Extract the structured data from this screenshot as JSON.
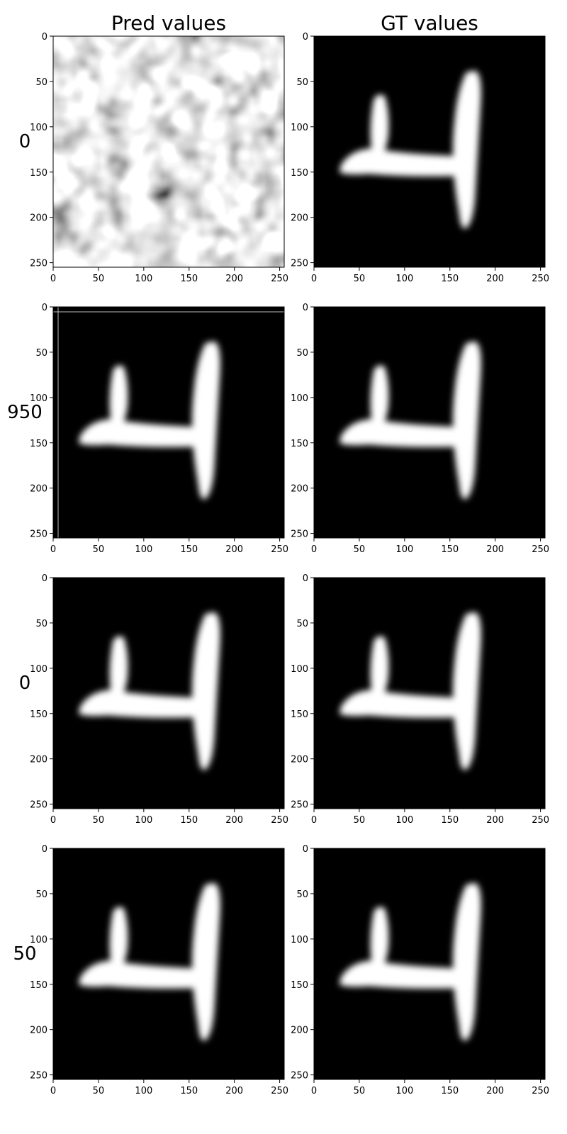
{
  "chart_data": {
    "type": "heatmap",
    "colormap": "gray",
    "column_titles": [
      "Pred values",
      "GT values"
    ],
    "row_labels": [
      "0",
      "950",
      "0",
      "50"
    ],
    "x_ticks": [
      "0",
      "50",
      "100",
      "150",
      "200",
      "250"
    ],
    "y_ticks": [
      "0",
      "50",
      "100",
      "150",
      "200",
      "250"
    ],
    "xlim": [
      0,
      255
    ],
    "ylim": [
      255,
      0
    ],
    "panels": [
      {
        "row": 0,
        "column": "Pred values",
        "content": "random-noise"
      },
      {
        "row": 0,
        "column": "GT values",
        "content": "digit-4"
      },
      {
        "row": 1,
        "column": "Pred values",
        "content": "digit-4-with-edge-lines"
      },
      {
        "row": 1,
        "column": "GT values",
        "content": "digit-4"
      },
      {
        "row": 2,
        "column": "Pred values",
        "content": "digit-4"
      },
      {
        "row": 2,
        "column": "GT values",
        "content": "digit-4"
      },
      {
        "row": 3,
        "column": "Pred values",
        "content": "digit-4"
      },
      {
        "row": 3,
        "column": "GT values",
        "content": "digit-4"
      }
    ]
  }
}
